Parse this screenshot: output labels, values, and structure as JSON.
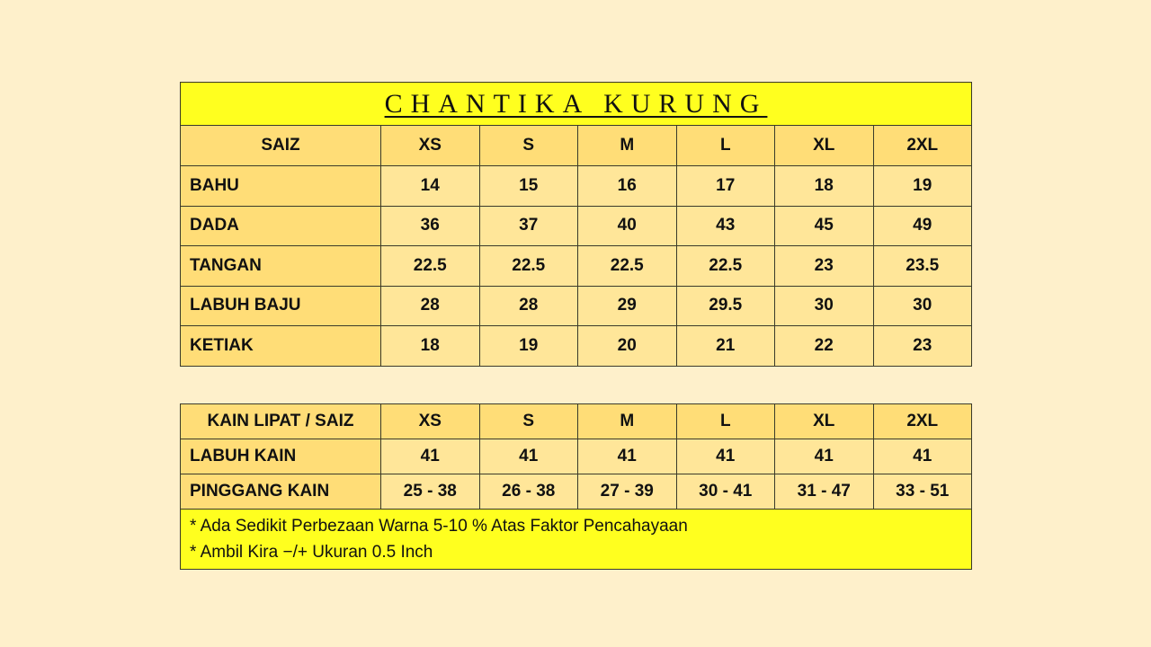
{
  "title": "CHANTIKA KURUNG",
  "colors": {
    "background": "#FEF0CB",
    "title_band": "#FFFF1F",
    "header_cell": "#FFDD77",
    "body_cell": "#FFE699"
  },
  "baju_table": {
    "header": [
      "SAIZ",
      "XS",
      "S",
      "M",
      "L",
      "XL",
      "2XL"
    ],
    "rows": [
      [
        "BAHU",
        "14",
        "15",
        "16",
        "17",
        "18",
        "19"
      ],
      [
        "DADA",
        "36",
        "37",
        "40",
        "43",
        "45",
        "49"
      ],
      [
        "TANGAN",
        "22.5",
        "22.5",
        "22.5",
        "22.5",
        "23",
        "23.5"
      ],
      [
        "LABUH BAJU",
        "28",
        "28",
        "29",
        "29.5",
        "30",
        "30"
      ],
      [
        "KETIAK",
        "18",
        "19",
        "20",
        "21",
        "22",
        "23"
      ]
    ]
  },
  "kain_table": {
    "header": [
      "KAIN LIPAT / SAIZ",
      "XS",
      "S",
      "M",
      "L",
      "XL",
      "2XL"
    ],
    "rows": [
      [
        "LABUH KAIN",
        "41",
        "41",
        "41",
        "41",
        "41",
        "41"
      ],
      [
        "PINGGANG KAIN",
        "25 - 38",
        "26 - 38",
        "27 - 39",
        "30 - 41",
        "31 - 47",
        "33 - 51"
      ]
    ]
  },
  "notes": [
    "*  Ada Sedikit Perbezaan Warna 5-10 % Atas Faktor Pencahayaan",
    "*  Ambil Kira −/+ Ukuran 0.5 Inch"
  ]
}
